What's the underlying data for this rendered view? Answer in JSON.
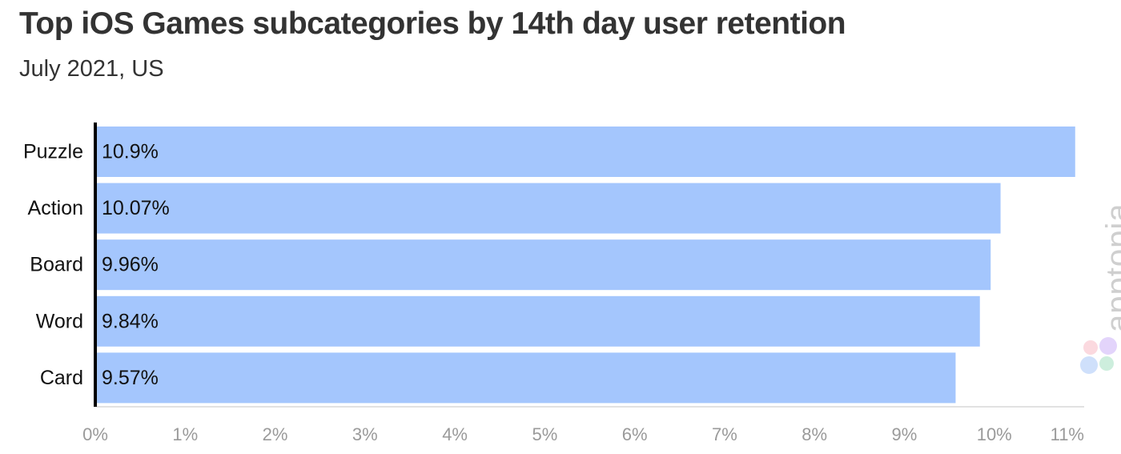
{
  "chart_data": {
    "type": "bar",
    "orientation": "horizontal",
    "title": "Top iOS Games subcategories by 14th day user retention",
    "subtitle": "July 2021, US",
    "categories": [
      "Puzzle",
      "Action",
      "Board",
      "Word",
      "Card"
    ],
    "values": [
      10.9,
      10.07,
      9.96,
      9.84,
      9.57
    ],
    "value_labels": [
      "10.9%",
      "10.07%",
      "9.96%",
      "9.84%",
      "9.57%"
    ],
    "xlim": [
      0,
      11
    ],
    "xticks": [
      "0%",
      "1%",
      "2%",
      "3%",
      "4%",
      "5%",
      "6%",
      "7%",
      "8%",
      "9%",
      "10%",
      "11%"
    ],
    "xlabel": "",
    "ylabel": "",
    "grid": false,
    "bar_color": "#a4c6fd"
  },
  "watermark": {
    "text": "apptopia",
    "icon": "apptopia-petal-logo-icon",
    "petal_colors": [
      "#fbd9df",
      "#e3d4fb",
      "#cfe0fb",
      "#cdeedd"
    ]
  }
}
